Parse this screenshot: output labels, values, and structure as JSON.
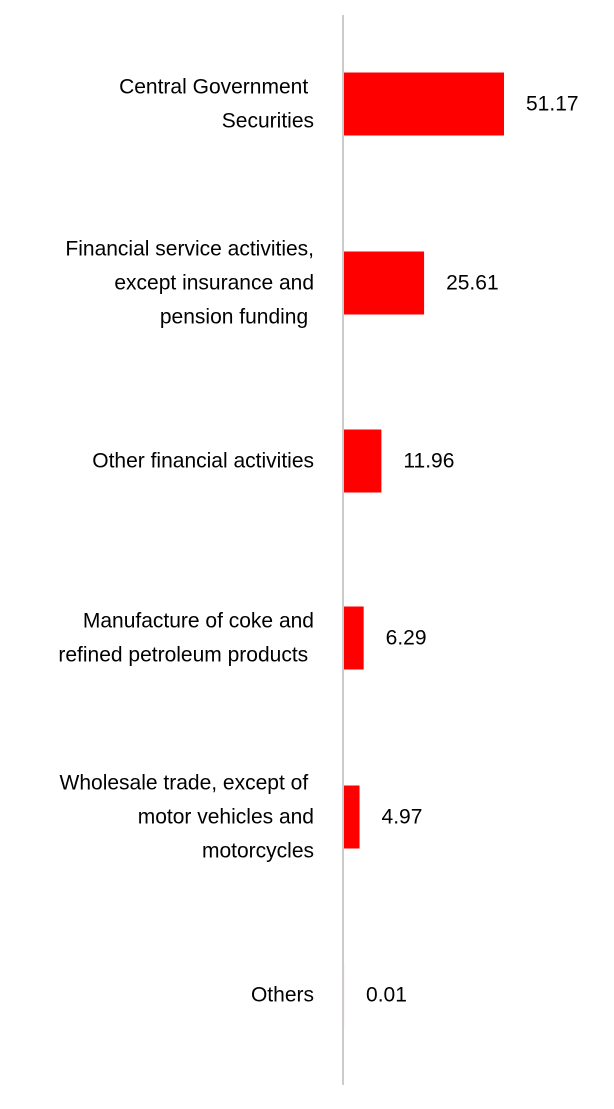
{
  "chart_data": {
    "type": "bar",
    "orientation": "horizontal",
    "title": "",
    "xlabel": "",
    "ylabel": "",
    "grid": false,
    "legend": false,
    "bar_color": "#ff0000",
    "axis_color": "#cccccc",
    "xlim": [
      0,
      51.17
    ],
    "categories": [
      [
        "Central Government ",
        "Securities"
      ],
      [
        "Financial service activities,",
        "except insurance and",
        "pension funding "
      ],
      [
        "Other financial activities"
      ],
      [
        "Manufacture of coke and",
        "refined petroleum products "
      ],
      [
        "Wholesale trade, except of ",
        "motor vehicles and",
        "motorcycles"
      ],
      [
        "Others"
      ]
    ],
    "values": [
      51.17,
      25.61,
      11.96,
      6.29,
      4.97,
      0.01
    ],
    "value_labels": [
      "51.17",
      "25.61",
      "11.96",
      "6.29",
      "4.97",
      "0.01"
    ]
  }
}
